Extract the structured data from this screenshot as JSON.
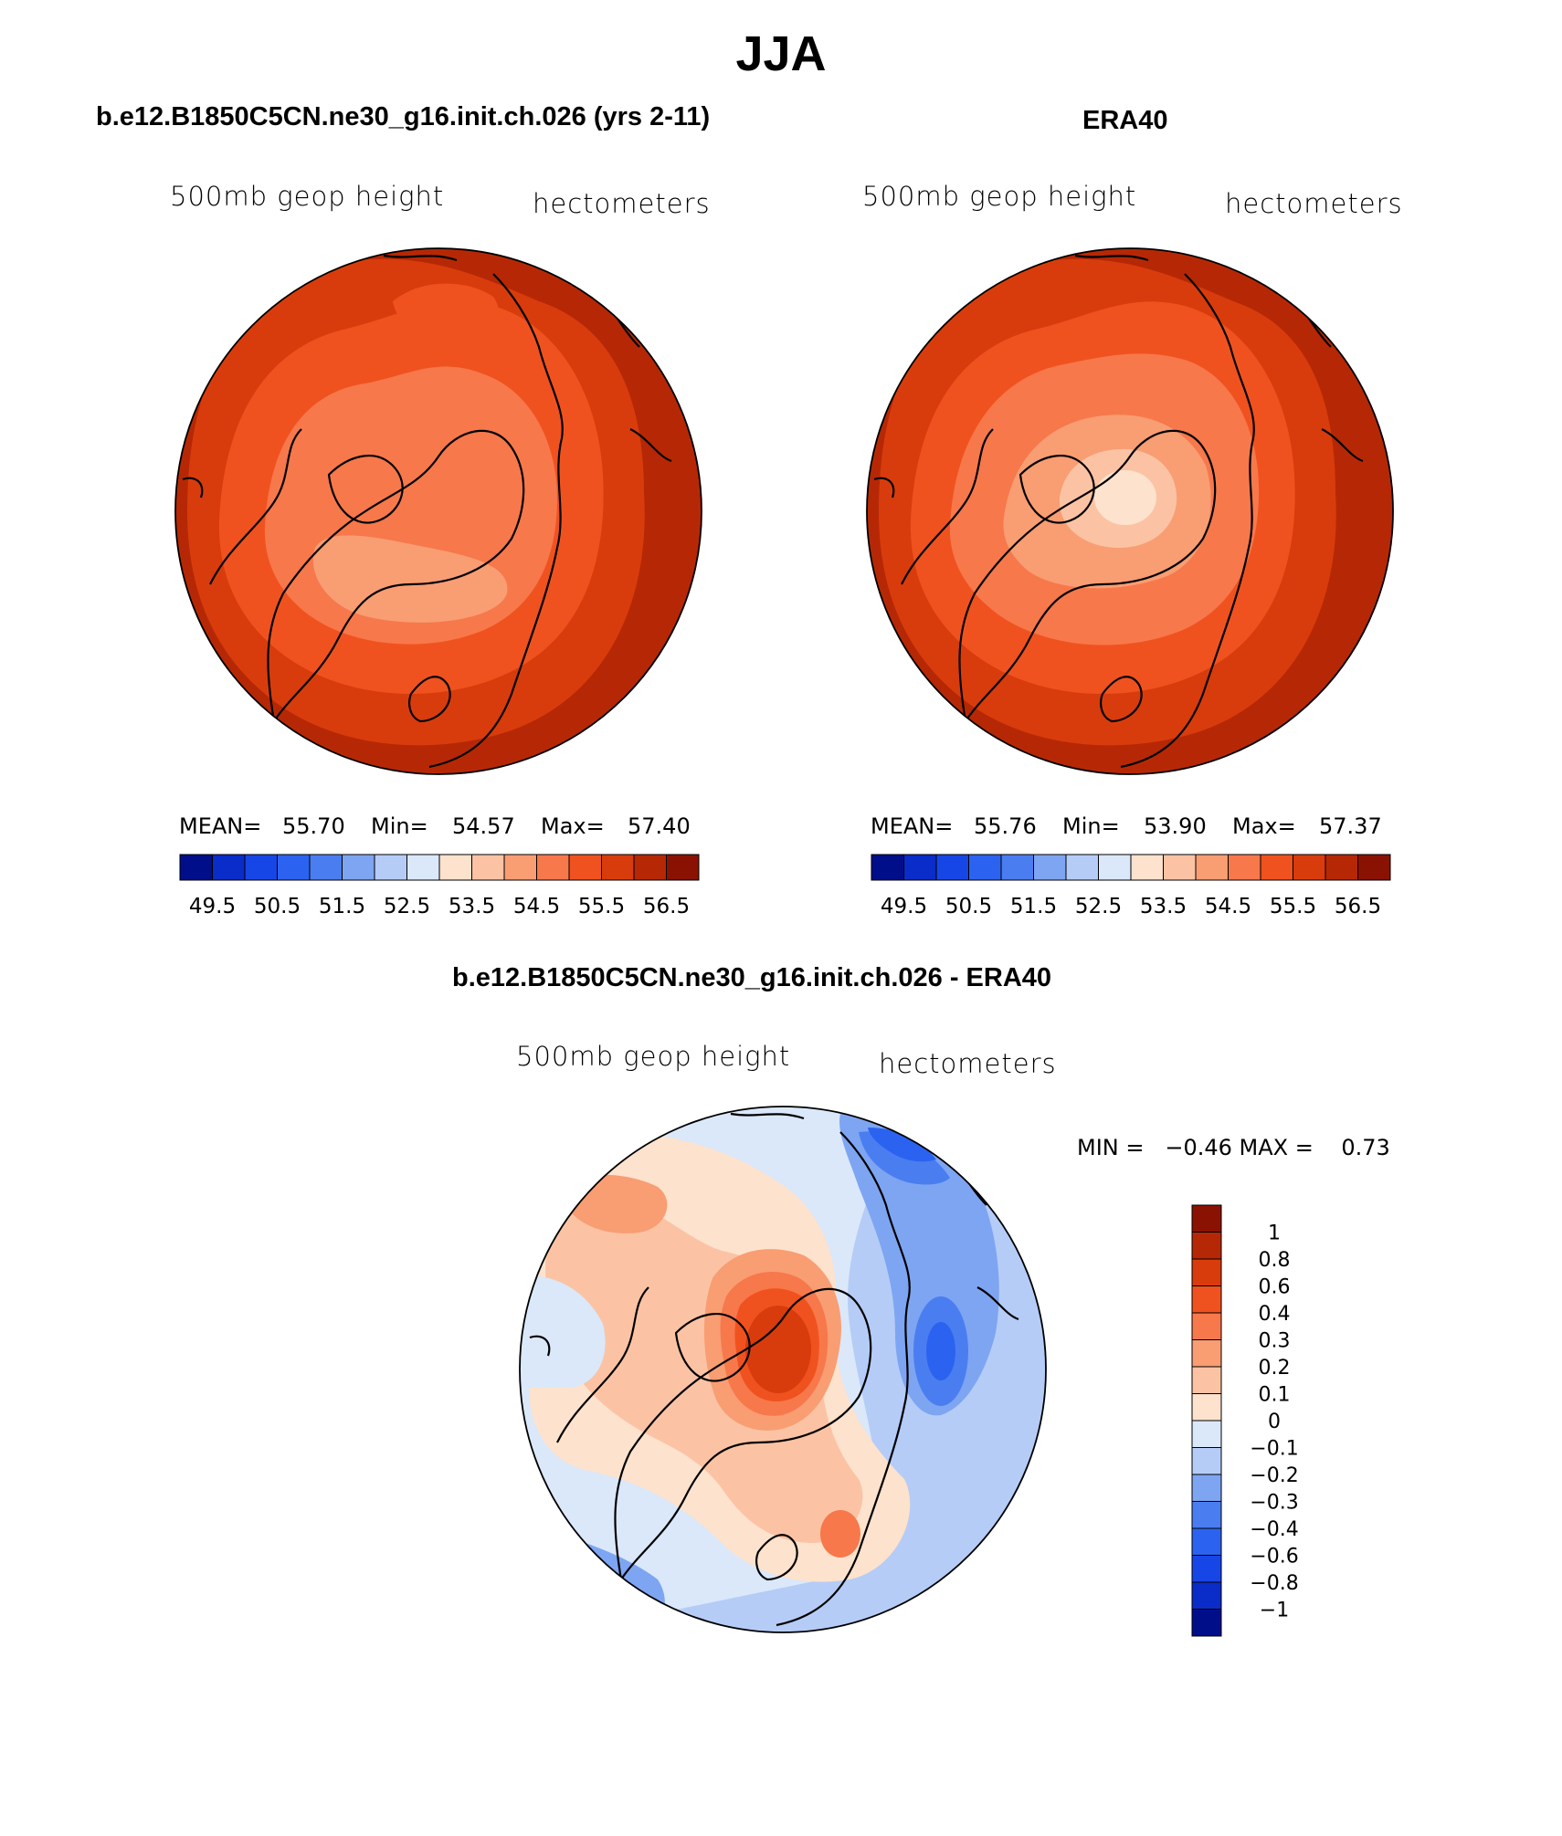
{
  "figure": {
    "title": "JJA",
    "colors": {
      "warm": [
        "#fde2cd",
        "#fbc3a4",
        "#f99d73",
        "#f7784b",
        "#f0521f",
        "#d93c0c",
        "#b62805",
        "#8a1202"
      ],
      "cool": [
        "#000e8a",
        "#0a2cc8",
        "#1746e6",
        "#2b63f0",
        "#4a7ef0",
        "#7ea5f2",
        "#b5ccf7",
        "#dae8fa"
      ],
      "diff": [
        "#000e8a",
        "#0a2cc8",
        "#1746e6",
        "#2b63f0",
        "#4a7ef0",
        "#7ea5f2",
        "#b5ccf7",
        "#dae8fa",
        "#fde2cd",
        "#fbc3a4",
        "#f99d73",
        "#f7784b",
        "#f0521f",
        "#d93c0c",
        "#b62805",
        "#8a1202"
      ]
    }
  },
  "panels": [
    {
      "title": "b.e12.B1850C5CN.ne30_g16.init.ch.026 (yrs 2-11)",
      "variable": "500mb geop height",
      "units": "hectometers",
      "stats": {
        "mean_label": "MEAN=",
        "mean": "55.70",
        "min_label": "Min=",
        "min": "54.57",
        "max_label": "Max=",
        "max": "57.40"
      },
      "colorbar_labels": [
        "49.5",
        "50.5",
        "51.5",
        "52.5",
        "53.5",
        "54.5",
        "55.5",
        "56.5"
      ]
    },
    {
      "title": "ERA40",
      "variable": "500mb geop height",
      "units": "hectometers",
      "stats": {
        "mean_label": "MEAN=",
        "mean": "55.76",
        "min_label": "Min=",
        "min": "53.90",
        "max_label": "Max=",
        "max": "57.37"
      },
      "colorbar_labels": [
        "49.5",
        "50.5",
        "51.5",
        "52.5",
        "53.5",
        "54.5",
        "55.5",
        "56.5"
      ]
    }
  ],
  "difference": {
    "title": "b.e12.B1850C5CN.ne30_g16.init.ch.026 - ERA40",
    "variable": "500mb geop height",
    "units": "hectometers",
    "minmax_text": "MIN =   −0.46 MAX =    0.73",
    "colorbar_labels": [
      "1",
      "0.8",
      "0.6",
      "0.4",
      "0.3",
      "0.2",
      "0.1",
      "0",
      "−0.1",
      "−0.2",
      "−0.3",
      "−0.4",
      "−0.6",
      "−0.8",
      "−1"
    ]
  }
}
